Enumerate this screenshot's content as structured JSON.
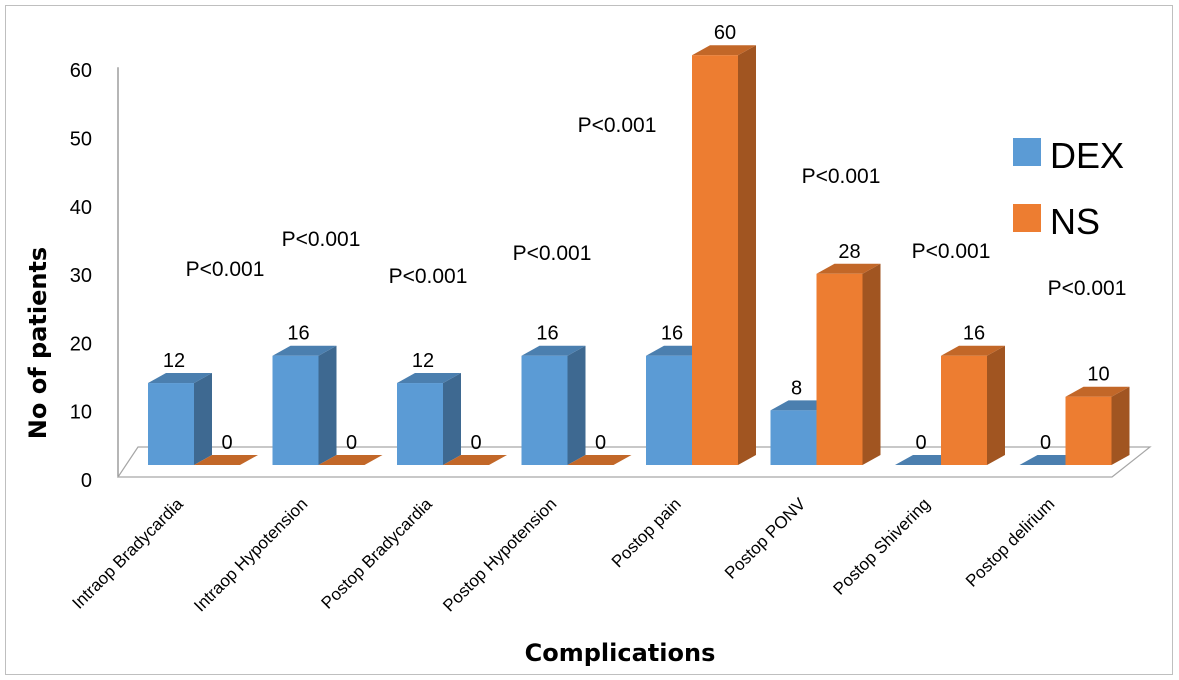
{
  "chart_data": {
    "type": "bar",
    "title": "",
    "xlabel": "Complications",
    "ylabel": "No of patients",
    "ylim": [
      0,
      60
    ],
    "yticks": [
      0,
      10,
      20,
      30,
      40,
      50,
      60
    ],
    "categories": [
      "Intraop Bradycardia",
      "Intraop Hypotension",
      "Postop Bradycardia",
      "Postop Hypotension",
      "Postop pain",
      "Postop PONV",
      "Postop Shivering",
      "Postop delirium"
    ],
    "series": [
      {
        "name": "DEX",
        "values": [
          12,
          16,
          12,
          16,
          16,
          8,
          0,
          0
        ],
        "color": "#5b9bd5"
      },
      {
        "name": "NS",
        "values": [
          0,
          0,
          0,
          0,
          60,
          28,
          16,
          10
        ],
        "color": "#ed7d31"
      }
    ],
    "annotations": [
      "P<0.001",
      "P<0.001",
      "P<0.001",
      "P<0.001",
      "P<0.001",
      "P<0.001",
      "P<0.001",
      "P<0.001"
    ],
    "legend": {
      "position": "right"
    },
    "grid": false,
    "style": "3d-clustered-column"
  }
}
